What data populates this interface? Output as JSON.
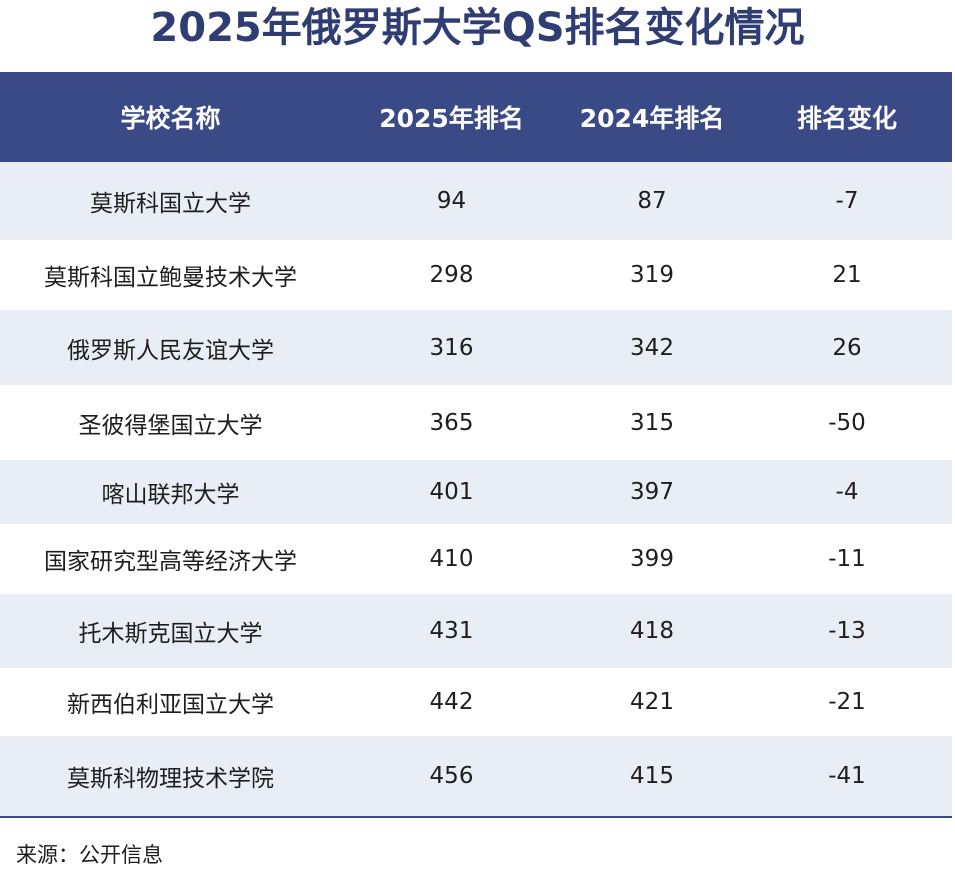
{
  "title": "2025年俄罗斯大学QS排名变化情况",
  "colors": {
    "title": "#2f3d72",
    "header_bg": "#3a4a86",
    "header_text": "#ffffff",
    "row_even": "#e9edf5",
    "row_odd": "#ffffff",
    "rule": "#3a4a80"
  },
  "columns": [
    "学校名称",
    "2025年排名",
    "2024年排名",
    "排名变化"
  ],
  "rows": [
    [
      "莫斯科国立大学",
      "94",
      "87",
      "-7"
    ],
    [
      "莫斯科国立鲍曼技术大学",
      "298",
      "319",
      "21"
    ],
    [
      "俄罗斯人民友谊大学",
      "316",
      "342",
      "26"
    ],
    [
      "圣彼得堡国立大学",
      "365",
      "315",
      "-50"
    ],
    [
      "喀山联邦大学",
      "401",
      "397",
      "-4"
    ],
    [
      "国家研究型高等经济大学",
      "410",
      "399",
      "-11"
    ],
    [
      "托木斯克国立大学",
      "431",
      "418",
      "-13"
    ],
    [
      "新西伯利亚国立大学",
      "442",
      "421",
      "-21"
    ],
    [
      "莫斯科物理技术学院",
      "456",
      "415",
      "-41"
    ]
  ],
  "source": "来源：公开信息"
}
